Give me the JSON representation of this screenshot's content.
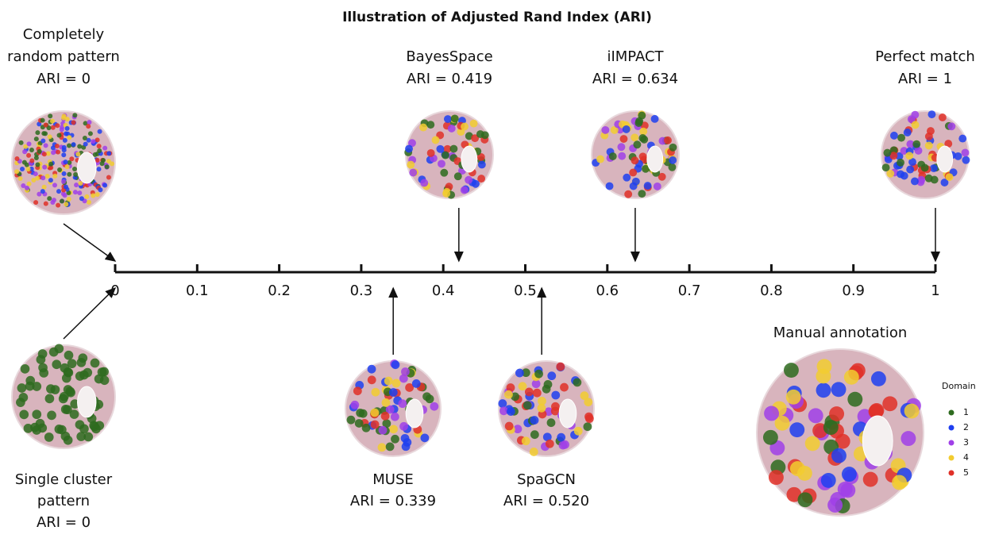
{
  "title": "Illustration of Adjusted Rand Index (ARI)",
  "axis": {
    "lim": [
      0,
      1
    ],
    "ticks": [
      0,
      0.1,
      0.2,
      0.3,
      0.4,
      0.5,
      0.6,
      0.7,
      0.8,
      0.9,
      1
    ]
  },
  "above": [
    {
      "lines": [
        "Completely",
        "random pattern"
      ],
      "ari": {
        "value": 0,
        "label": "ARI = 0"
      }
    },
    {
      "lines": [
        "BayesSpace"
      ],
      "ari": {
        "value": 0.419,
        "label": "ARI = 0.419"
      }
    },
    {
      "lines": [
        "iIMPACT"
      ],
      "ari": {
        "value": 0.634,
        "label": "ARI = 0.634"
      }
    },
    {
      "lines": [
        "Perfect match"
      ],
      "ari": {
        "value": 1,
        "label": "ARI = 1"
      }
    }
  ],
  "below": [
    {
      "lines": [
        "Single cluster",
        "pattern"
      ],
      "ari": {
        "value": 0,
        "label": "ARI = 0"
      }
    },
    {
      "lines": [
        "MUSE"
      ],
      "ari": {
        "value": 0.339,
        "label": "ARI = 0.339"
      }
    },
    {
      "lines": [
        "SpaGCN"
      ],
      "ari": {
        "value": 0.52,
        "label": "ARI = 0.520"
      }
    }
  ],
  "reference": {
    "label": "Manual annotation"
  },
  "legend": {
    "title": "Domain",
    "items": [
      {
        "label": "1",
        "color": "#2e6b1f"
      },
      {
        "label": "2",
        "color": "#1f3ff0"
      },
      {
        "label": "3",
        "color": "#a040e8"
      },
      {
        "label": "4",
        "color": "#f2cc30"
      },
      {
        "label": "5",
        "color": "#e03028"
      }
    ]
  }
}
